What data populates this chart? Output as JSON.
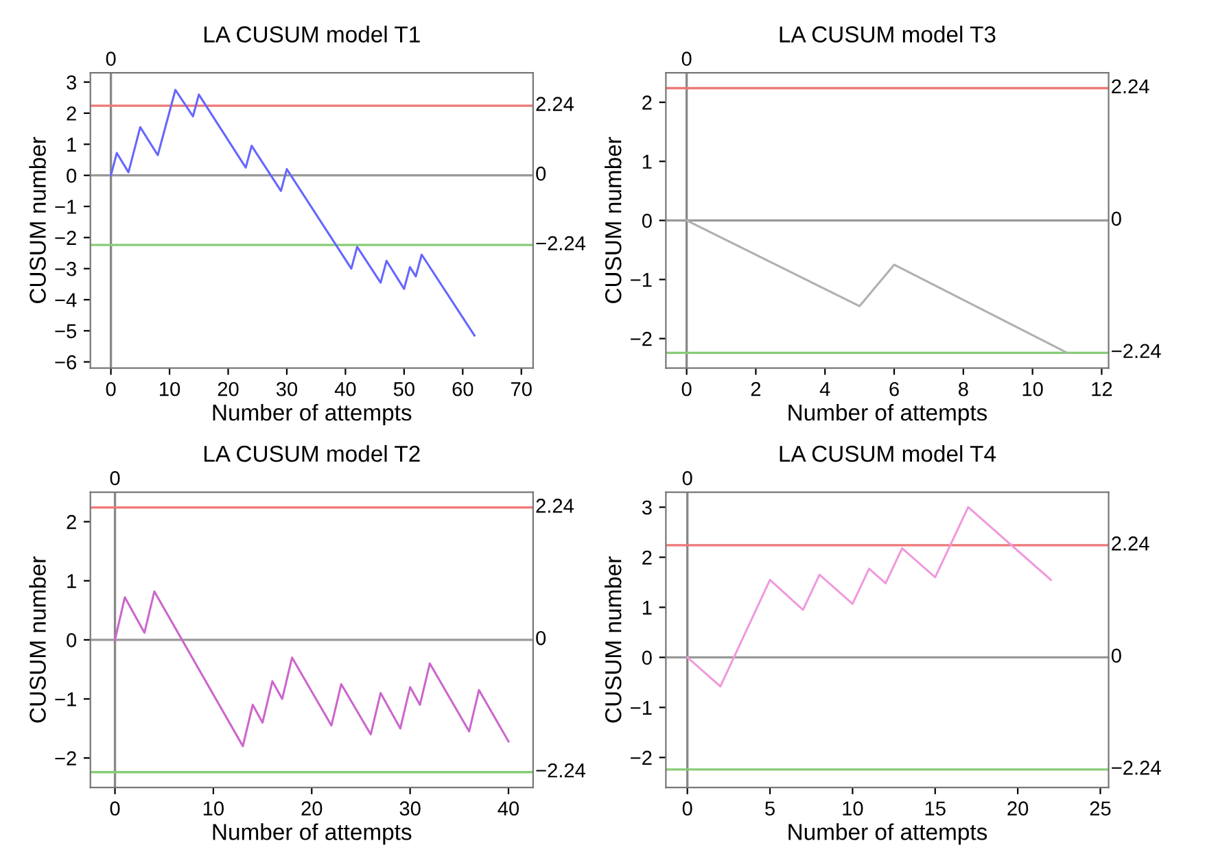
{
  "chart_data": [
    {
      "type": "line",
      "title": "LA CUSUM model T1",
      "xlabel": "Number of attempts",
      "ylabel": "CUSUM number",
      "xlim": [
        -3.5,
        72
      ],
      "ylim": [
        -6.2,
        3.3
      ],
      "xticks": [
        0,
        10,
        20,
        30,
        40,
        50,
        60,
        70
      ],
      "yticks": [
        -6,
        -5,
        -4,
        -3,
        -2,
        -1,
        0,
        1,
        2,
        3
      ],
      "grid": false,
      "marker": "none",
      "line_style": "solid",
      "series": [
        {
          "color": "#6666ff",
          "x": [
            0,
            1,
            3,
            5,
            8,
            11,
            14,
            15,
            23,
            24,
            29,
            30,
            41,
            42,
            46,
            47,
            50,
            51,
            52,
            53,
            62
          ],
          "values": [
            0,
            0.72,
            0.1,
            1.55,
            0.65,
            2.75,
            1.9,
            2.6,
            0.25,
            0.95,
            -0.5,
            0.2,
            -3.0,
            -2.3,
            -3.45,
            -2.75,
            -3.65,
            -2.95,
            -3.25,
            -2.55,
            -5.15
          ]
        }
      ],
      "ref_lines": [
        {
          "axis": "x",
          "value": 0,
          "label": "0",
          "color": "#888888"
        },
        {
          "axis": "y",
          "value": 2.24,
          "label": "2.24",
          "color": "#ee7777"
        },
        {
          "axis": "y",
          "value": 0,
          "label": "0",
          "color": "#999999"
        },
        {
          "axis": "y",
          "value": -2.24,
          "label": "−2.24",
          "color": "#88cc77"
        }
      ]
    },
    {
      "type": "line",
      "title": "LA CUSUM model T3",
      "xlabel": "Number of attempts",
      "ylabel": "CUSUM number",
      "xlim": [
        -0.6,
        12.2
      ],
      "ylim": [
        -2.5,
        2.5
      ],
      "xticks": [
        0,
        2,
        4,
        6,
        8,
        10,
        12
      ],
      "yticks": [
        -2,
        -1,
        0,
        1,
        2
      ],
      "grid": false,
      "marker": "none",
      "line_style": "solid",
      "series": [
        {
          "color": "#b0b0b0",
          "x": [
            0,
            5,
            6,
            11
          ],
          "values": [
            0,
            -1.45,
            -0.75,
            -2.24
          ]
        }
      ],
      "ref_lines": [
        {
          "axis": "x",
          "value": 0,
          "label": "0",
          "color": "#888888"
        },
        {
          "axis": "y",
          "value": 2.24,
          "label": "2.24",
          "color": "#ee7777"
        },
        {
          "axis": "y",
          "value": 0,
          "label": "0",
          "color": "#999999"
        },
        {
          "axis": "y",
          "value": -2.24,
          "label": "−2.24",
          "color": "#88cc77"
        }
      ]
    },
    {
      "type": "line",
      "title": "LA CUSUM model T2",
      "xlabel": "Number of attempts",
      "ylabel": "CUSUM number",
      "xlim": [
        -2.5,
        42.5
      ],
      "ylim": [
        -2.5,
        2.5
      ],
      "xticks": [
        0,
        10,
        20,
        30,
        40
      ],
      "yticks": [
        -2,
        -1,
        0,
        1,
        2
      ],
      "grid": false,
      "marker": "none",
      "line_style": "solid",
      "series": [
        {
          "color": "#cc66cc",
          "x": [
            0,
            1,
            3,
            4,
            13,
            14,
            15,
            16,
            17,
            18,
            22,
            23,
            26,
            27,
            29,
            30,
            31,
            32,
            36,
            37,
            40
          ],
          "values": [
            0,
            0.72,
            0.12,
            0.82,
            -1.8,
            -1.1,
            -1.4,
            -0.7,
            -1.0,
            -0.3,
            -1.45,
            -0.75,
            -1.6,
            -0.9,
            -1.5,
            -0.8,
            -1.1,
            -0.4,
            -1.55,
            -0.85,
            -1.72
          ]
        }
      ],
      "ref_lines": [
        {
          "axis": "x",
          "value": 0,
          "label": "0",
          "color": "#888888"
        },
        {
          "axis": "y",
          "value": 2.24,
          "label": "2.24",
          "color": "#ee7777"
        },
        {
          "axis": "y",
          "value": 0,
          "label": "0",
          "color": "#999999"
        },
        {
          "axis": "y",
          "value": -2.24,
          "label": "−2.24",
          "color": "#88cc77"
        }
      ]
    },
    {
      "type": "line",
      "title": "LA CUSUM model T4",
      "xlabel": "Number of attempts",
      "ylabel": "CUSUM number",
      "xlim": [
        -1.3,
        25.5
      ],
      "ylim": [
        -2.6,
        3.3
      ],
      "xticks": [
        0,
        5,
        10,
        15,
        20,
        25
      ],
      "yticks": [
        -2,
        -1,
        0,
        1,
        2,
        3
      ],
      "grid": false,
      "marker": "none",
      "line_style": "solid",
      "series": [
        {
          "color": "#f099dd",
          "x": [
            0,
            2,
            5,
            7,
            8,
            10,
            11,
            12,
            13,
            15,
            17,
            22
          ],
          "values": [
            0,
            -0.58,
            1.55,
            0.95,
            1.65,
            1.07,
            1.77,
            1.48,
            2.18,
            1.6,
            3.0,
            1.55
          ]
        }
      ],
      "ref_lines": [
        {
          "axis": "x",
          "value": 0,
          "label": "0",
          "color": "#888888"
        },
        {
          "axis": "y",
          "value": 2.24,
          "label": "2.24",
          "color": "#ee7777"
        },
        {
          "axis": "y",
          "value": 0,
          "label": "0",
          "color": "#999999"
        },
        {
          "axis": "y",
          "value": -2.24,
          "label": "−2.24",
          "color": "#88cc77"
        }
      ]
    }
  ]
}
